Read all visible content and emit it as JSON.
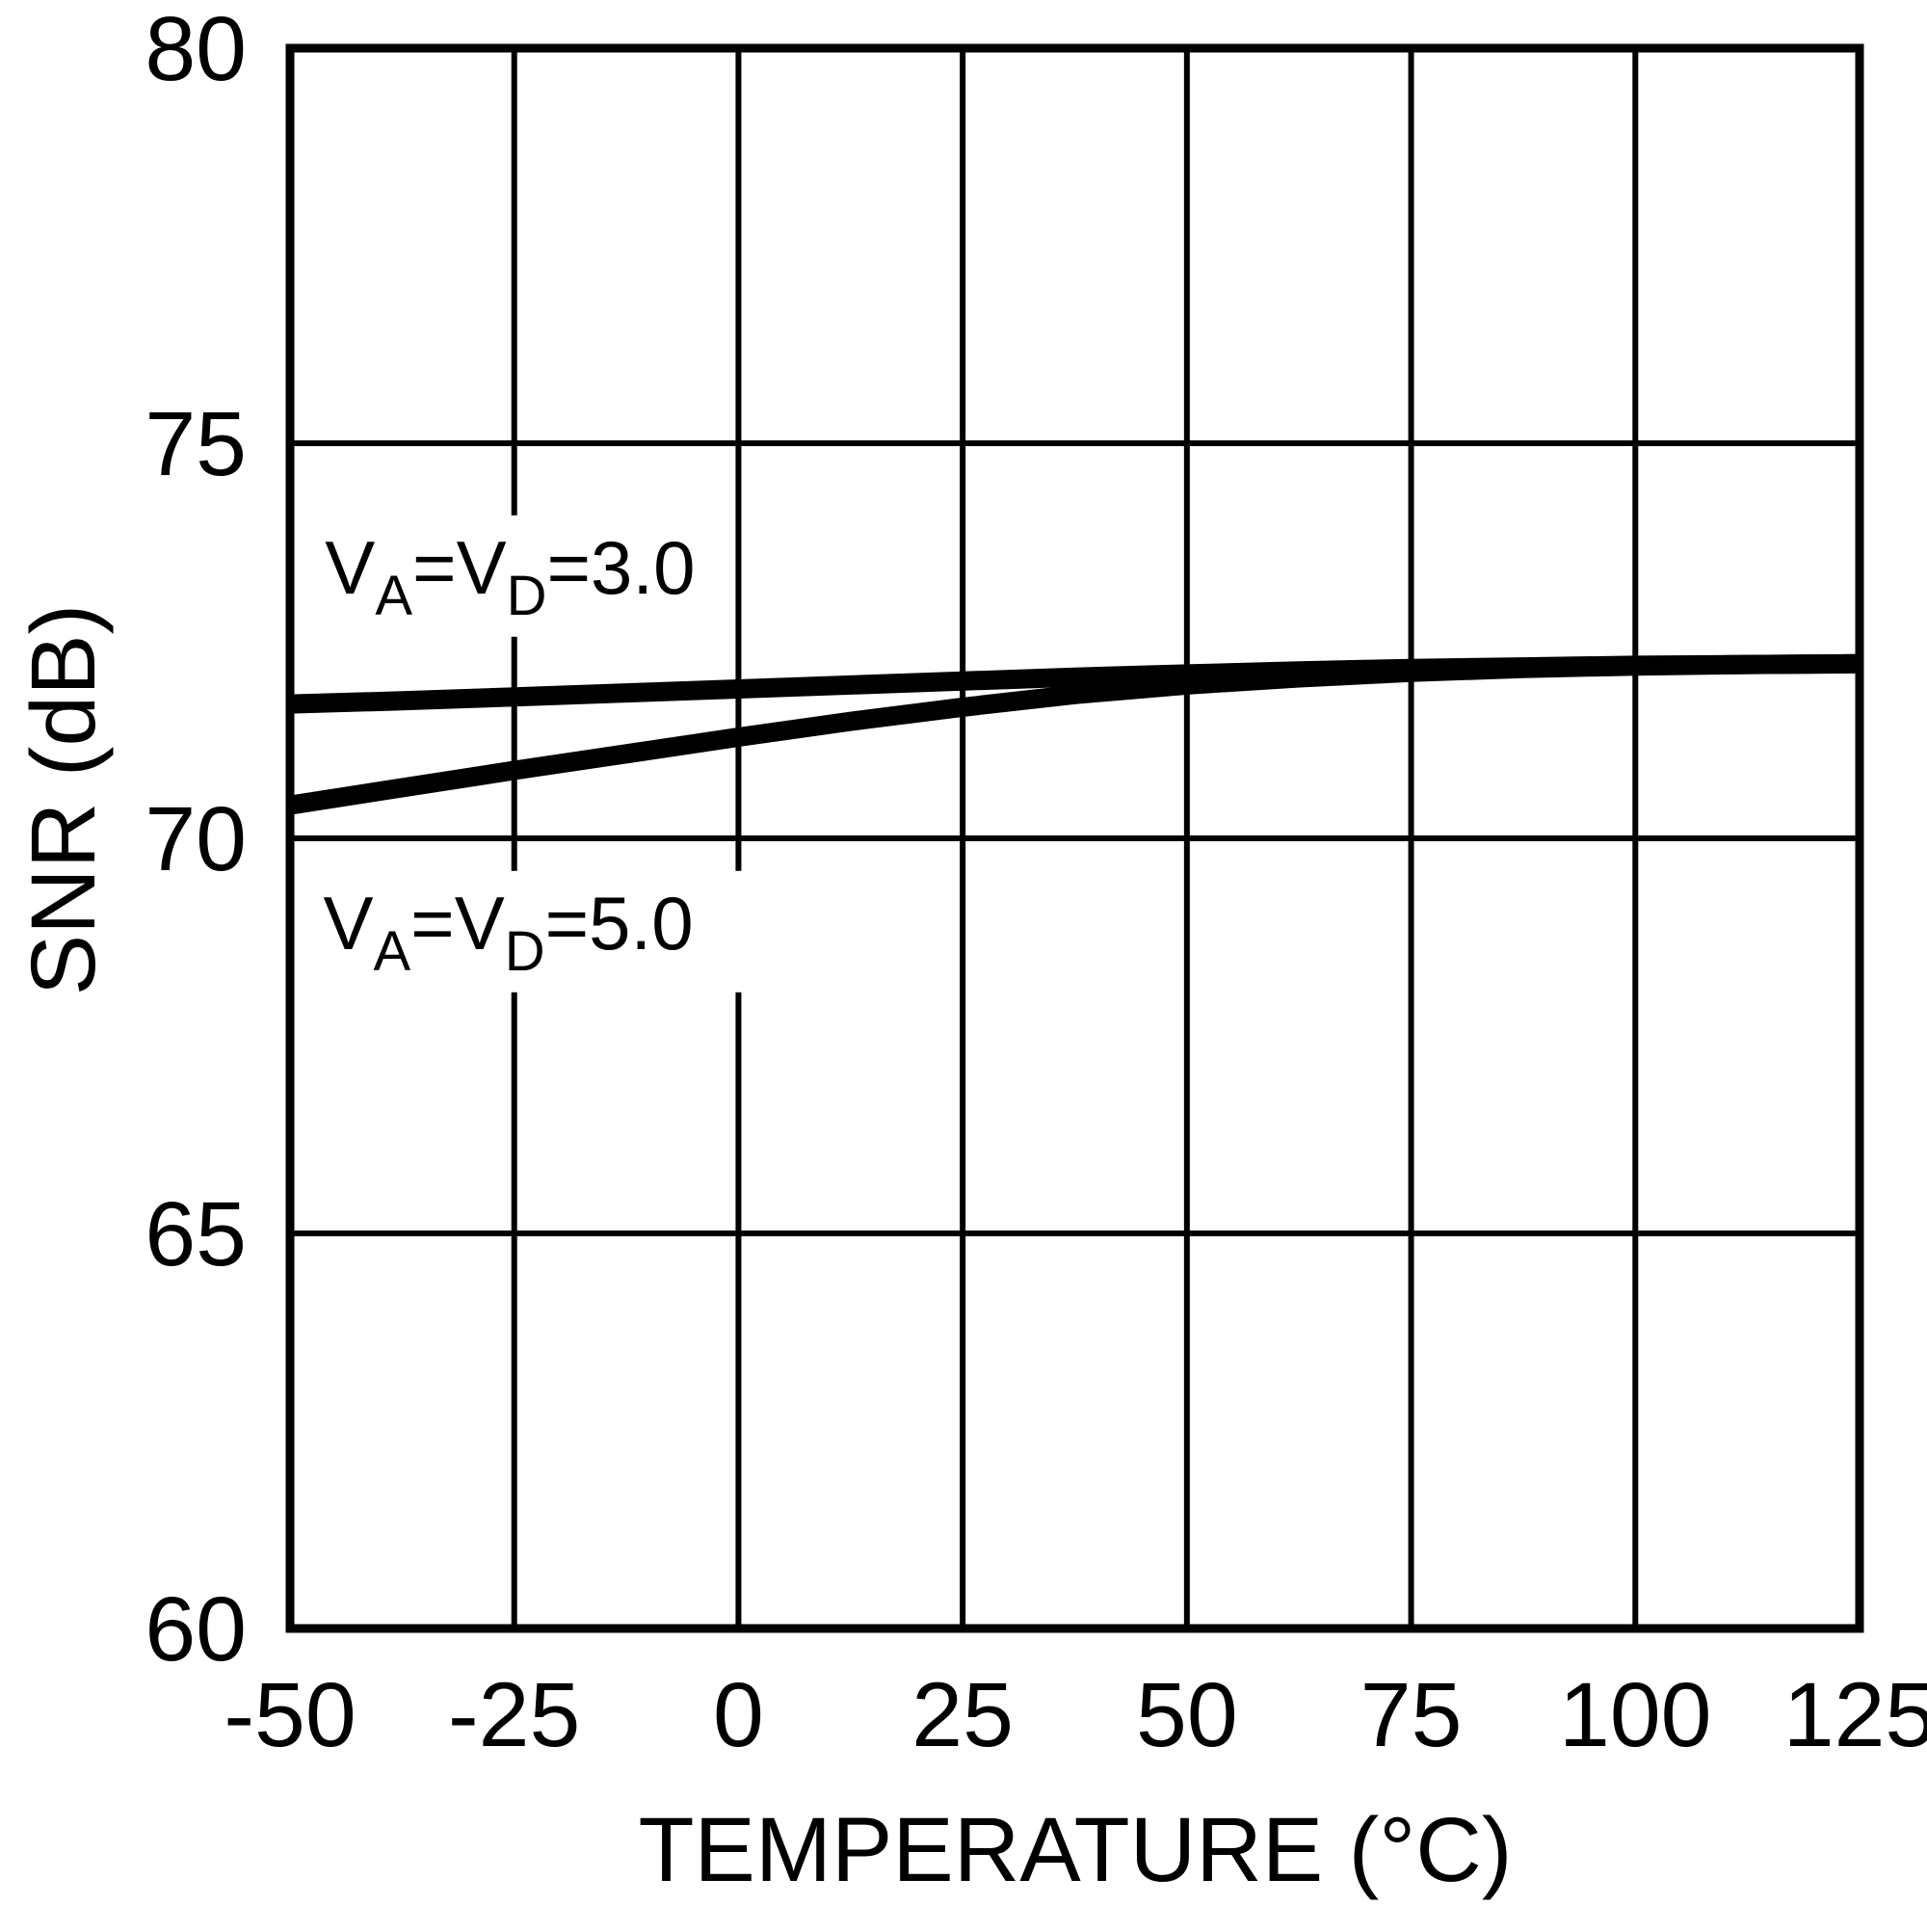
{
  "chart_data": {
    "type": "line",
    "title": "",
    "xlabel": "TEMPERATURE (°C)",
    "ylabel": "SNR (dB)",
    "xlim": [
      -50,
      125
    ],
    "ylim": [
      60,
      80
    ],
    "xticks": [
      -50,
      -25,
      0,
      25,
      50,
      75,
      100,
      125
    ],
    "yticks": [
      60,
      65,
      70,
      75,
      80
    ],
    "grid": true,
    "legend_position": "none",
    "line_color": "#000000",
    "grid_color": "#000000",
    "background": "#ffffff",
    "x": [
      -50,
      -37.5,
      -25,
      -12.5,
      0,
      12.5,
      25,
      37.5,
      50,
      62.5,
      75,
      87.5,
      100,
      112.5,
      125
    ],
    "series": [
      {
        "name": "V_A=V_D=3.0",
        "values": [
          71.7,
          71.74,
          71.79,
          71.84,
          71.89,
          71.94,
          71.99,
          72.04,
          72.08,
          72.12,
          72.15,
          72.17,
          72.19,
          72.2,
          72.21
        ]
      },
      {
        "name": "V_A=V_D=5.0",
        "values": [
          70.42,
          70.64,
          70.86,
          71.07,
          71.28,
          71.48,
          71.66,
          71.82,
          71.94,
          72.03,
          72.1,
          72.15,
          72.18,
          72.2,
          72.21
        ]
      }
    ],
    "annotations": [
      {
        "text": "V_A=V_D=3.0",
        "x": -46.1,
        "y": 73.1
      },
      {
        "text": "V_A=V_D=5.0",
        "x": -46.3,
        "y": 68.6
      }
    ]
  }
}
